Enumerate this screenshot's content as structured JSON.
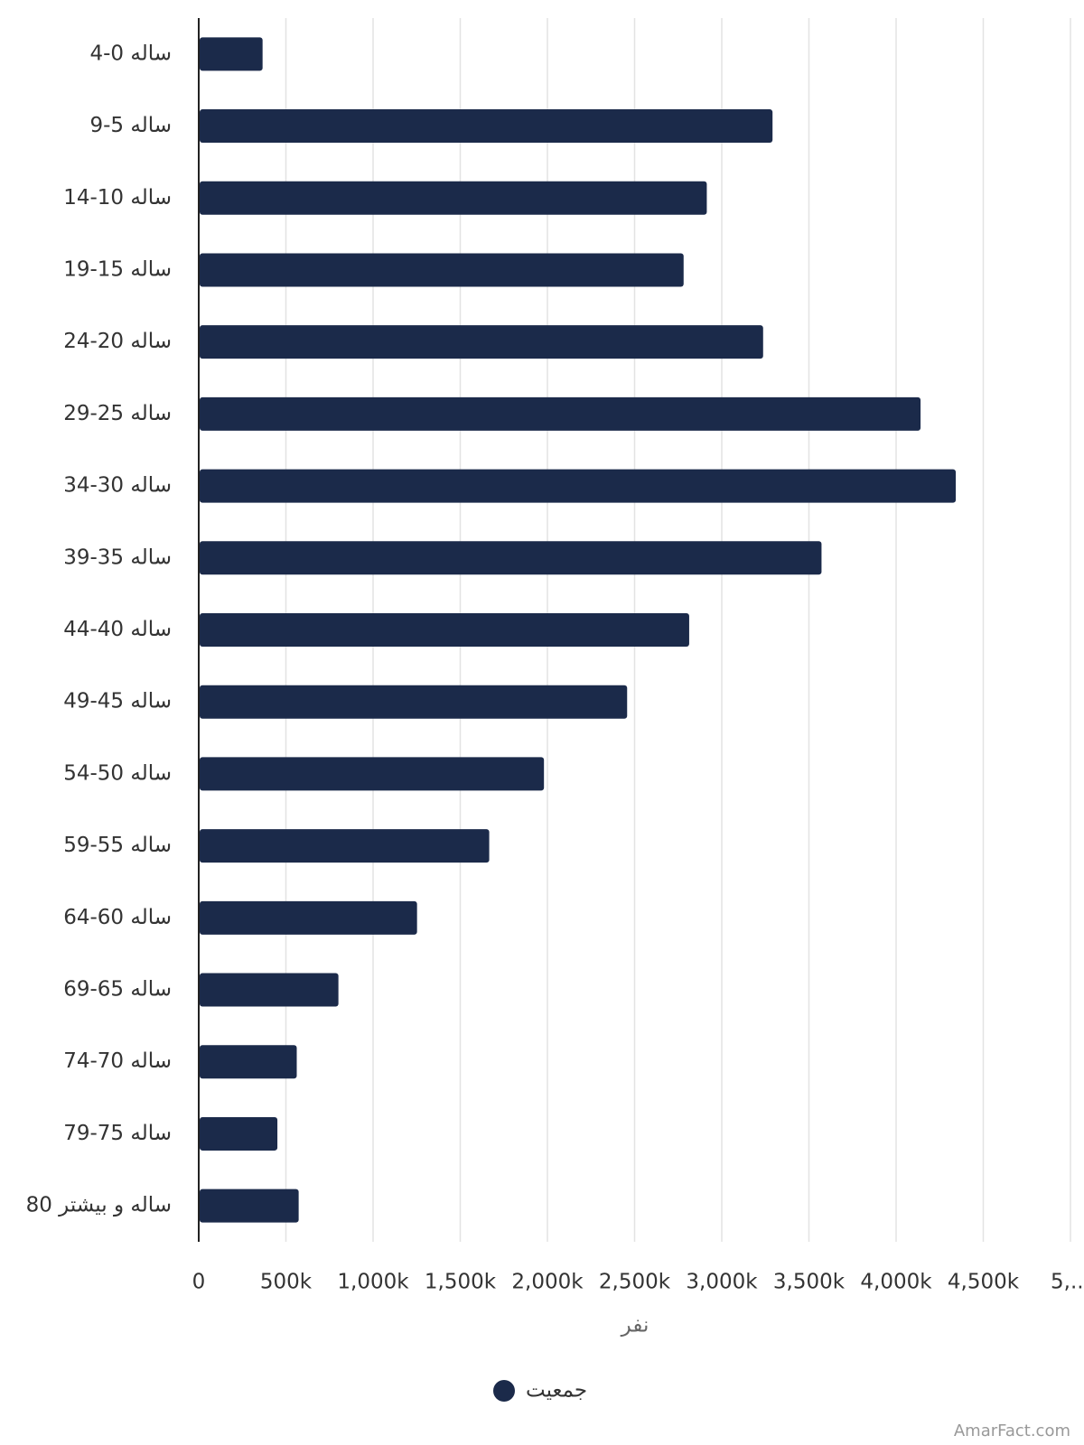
{
  "chart_data": {
    "type": "hbar",
    "categories": [
      "ساله 0-4",
      "ساله 5-9",
      "ساله 10-14",
      "ساله 15-19",
      "ساله 20-24",
      "ساله 25-29",
      "ساله 30-34",
      "ساله 35-39",
      "ساله 40-44",
      "ساله 45-49",
      "ساله 50-54",
      "ساله 55-59",
      "ساله 60-64",
      "ساله 65-69",
      "ساله 70-74",
      "ساله 75-79",
      "ساله و بیشتر 80"
    ],
    "series": [
      {
        "name": "جمعیت",
        "color": "#1b2a4a",
        "values": [
          361000,
          3286000,
          2909000,
          2776000,
          3232000,
          4135000,
          4337000,
          3567000,
          2808000,
          2452000,
          1975000,
          1661000,
          1247000,
          796000,
          557000,
          446000,
          568000
        ]
      }
    ],
    "xlabel": "نفر",
    "xlim": [
      0,
      5000000
    ],
    "xticks": [
      0,
      {
        "value": 500000,
        "label": "500k"
      },
      {
        "value": 1000000,
        "label": "1,000k"
      },
      {
        "value": 1500000,
        "label": "1,500k"
      },
      {
        "value": 2000000,
        "label": "2,000k"
      },
      {
        "value": 2500000,
        "label": "2,500k"
      },
      {
        "value": 3000000,
        "label": "3,000k"
      },
      {
        "value": 3500000,
        "label": "3,500k"
      },
      {
        "value": 4000000,
        "label": "4,000k"
      },
      {
        "value": 4500000,
        "label": "4,500k"
      },
      {
        "value": 5000000,
        "label": "5,..."
      }
    ],
    "grid": true,
    "legend": "bottom",
    "source": "AmarFact.com"
  }
}
